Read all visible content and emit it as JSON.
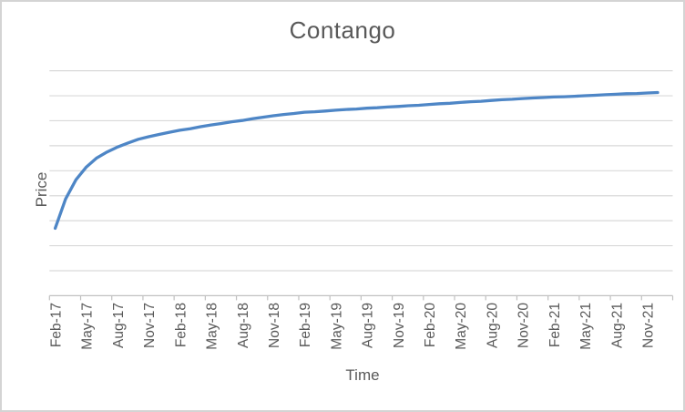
{
  "frame": {
    "background": "#ffffff",
    "border_color": "#d4d4d4"
  },
  "chart_data": {
    "type": "line",
    "title": "Contango",
    "xlabel": "Time",
    "ylabel": "Price",
    "x_tick_labels": [
      "Feb-17",
      "May-17",
      "Aug-17",
      "Nov-17",
      "Feb-18",
      "May-18",
      "Aug-18",
      "Nov-18",
      "Feb-19",
      "May-19",
      "Aug-19",
      "Nov-19",
      "Feb-20",
      "May-20",
      "Aug-20",
      "Nov-20",
      "Feb-21",
      "May-21",
      "Aug-21",
      "Nov-21"
    ],
    "y_axis": {
      "tick_labels_shown": false,
      "unit": "arbitrary (1 = one gridline interval, 0 = x-axis)",
      "range": [
        0,
        9
      ],
      "gridline_count": 9
    },
    "legend": "none",
    "colors": {
      "line": "#4e86c6",
      "gridline": "#d9d9d9",
      "axis": "#c0c0c0",
      "text": "#595959"
    },
    "series": [
      {
        "name": "Price",
        "x_start": "Feb-17",
        "x_interval": "monthly",
        "x_end": "Dec-21",
        "values": [
          2.7,
          3.87,
          4.64,
          5.15,
          5.51,
          5.75,
          5.95,
          6.11,
          6.26,
          6.36,
          6.45,
          6.54,
          6.62,
          6.68,
          6.76,
          6.83,
          6.89,
          6.96,
          7.01,
          7.08,
          7.14,
          7.2,
          7.25,
          7.29,
          7.34,
          7.36,
          7.39,
          7.42,
          7.45,
          7.47,
          7.5,
          7.52,
          7.55,
          7.57,
          7.6,
          7.62,
          7.65,
          7.68,
          7.7,
          7.73,
          7.76,
          7.78,
          7.81,
          7.84,
          7.86,
          7.89,
          7.91,
          7.93,
          7.95,
          7.96,
          7.98,
          8.0,
          8.02,
          8.04,
          8.06,
          8.08,
          8.09,
          8.11,
          8.13
        ]
      }
    ]
  }
}
